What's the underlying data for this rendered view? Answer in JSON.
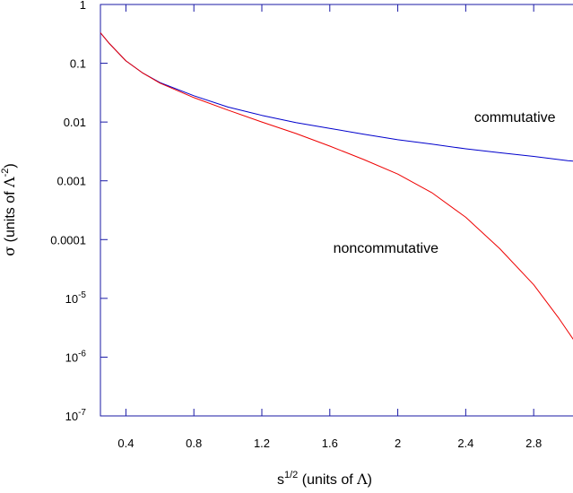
{
  "chart_data": {
    "type": "line",
    "xlabel": "s^{1/2} (units of Λ)",
    "ylabel": "σ (units of Λ^{-2})",
    "xlim": [
      0.25,
      3.1
    ],
    "ylim": [
      1e-07,
      1
    ],
    "yscale": "log",
    "grid": false,
    "x_ticks": [
      0.4,
      0.8,
      1.2,
      1.6,
      2,
      2.4,
      2.8
    ],
    "x_tick_labels": [
      "0.4",
      "0.8",
      "1.2",
      "1.6",
      "2",
      "2.4",
      "2.8"
    ],
    "y_ticks": [
      {
        "value": 1,
        "base": "1",
        "exp": ""
      },
      {
        "value": 0.1,
        "base": "0.1",
        "exp": ""
      },
      {
        "value": 0.01,
        "base": "0.01",
        "exp": ""
      },
      {
        "value": 0.001,
        "base": "0.001",
        "exp": ""
      },
      {
        "value": 0.0001,
        "base": "0.0001",
        "exp": ""
      },
      {
        "value": 1e-05,
        "base": "10",
        "exp": "-5"
      },
      {
        "value": 1e-06,
        "base": "10",
        "exp": "-6"
      },
      {
        "value": 1e-07,
        "base": "10",
        "exp": "-7"
      }
    ],
    "series": [
      {
        "name": "commutative",
        "color": "#0000cc",
        "x": [
          0.25,
          0.3,
          0.4,
          0.5,
          0.6,
          0.8,
          1.0,
          1.2,
          1.4,
          1.6,
          1.8,
          2.0,
          2.2,
          2.4,
          2.6,
          2.8,
          3.0,
          3.1
        ],
        "y": [
          0.33,
          0.22,
          0.11,
          0.068,
          0.047,
          0.028,
          0.018,
          0.013,
          0.0098,
          0.0078,
          0.0062,
          0.005,
          0.0042,
          0.0035,
          0.003,
          0.0026,
          0.0022,
          0.0021
        ]
      },
      {
        "name": "noncommutative",
        "color": "#ee0000",
        "x": [
          0.25,
          0.3,
          0.4,
          0.5,
          0.6,
          0.8,
          1.0,
          1.2,
          1.4,
          1.6,
          1.8,
          2.0,
          2.2,
          2.4,
          2.6,
          2.8,
          2.95,
          3.05,
          3.1
        ],
        "y": [
          0.33,
          0.22,
          0.11,
          0.068,
          0.046,
          0.026,
          0.016,
          0.01,
          0.0064,
          0.0039,
          0.0023,
          0.0013,
          0.00063,
          0.00024,
          7e-05,
          1.7e-05,
          4.5e-06,
          1.7e-06,
          1e-06
        ]
      }
    ],
    "annotations": [
      {
        "text": "commutative",
        "x": 2.45,
        "y": 0.01
      },
      {
        "text": "noncommutative",
        "x": 1.62,
        "y": 6e-05
      }
    ]
  }
}
